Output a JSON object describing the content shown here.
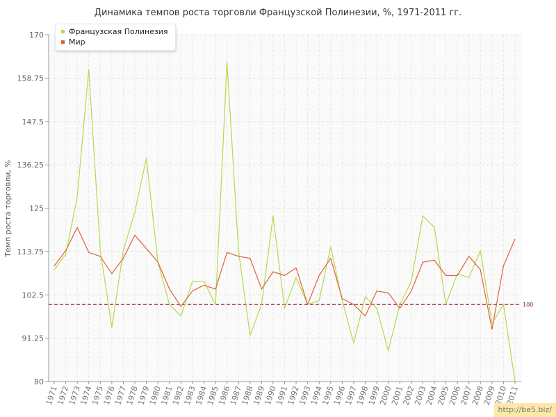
{
  "chart_data": {
    "type": "line",
    "title": "Динамика темпов роста торговли Французской Полинезии, %, 1971-2011 гг.",
    "ylabel": "Темп роста торговли, %",
    "xlabel": "",
    "ylim": [
      80,
      170
    ],
    "yticks": [
      "80",
      "91.25",
      "102.5",
      "113.75",
      "125",
      "136.25",
      "147.5",
      "158.75",
      "170"
    ],
    "reference_line": {
      "value": 100,
      "label": "100",
      "color": "#8b1a1a"
    },
    "grid": true,
    "legend": "top-left",
    "categories": [
      "1971",
      "1972",
      "1973",
      "1974",
      "1975",
      "1976",
      "1977",
      "1978",
      "1979",
      "1980",
      "1981",
      "1982",
      "1983",
      "1984",
      "1985",
      "1986",
      "1987",
      "1988",
      "1989",
      "1990",
      "1991",
      "1992",
      "1993",
      "1994",
      "1995",
      "1996",
      "1997",
      "1998",
      "1999",
      "2000",
      "2001",
      "2002",
      "2003",
      "2004",
      "2005",
      "2006",
      "2007",
      "2008",
      "2009",
      "2010",
      "2011"
    ],
    "series": [
      {
        "name": "Французская Полинезия",
        "color": "#b5d94a",
        "values": [
          109,
          113,
          128,
          161,
          114,
          94,
          114,
          124,
          138,
          111,
          100,
          97,
          106,
          106,
          100,
          163,
          114,
          92,
          100,
          123,
          99,
          107,
          100,
          101,
          115,
          101,
          90,
          102,
          99,
          88,
          100,
          106,
          123,
          120,
          100,
          108,
          107,
          114,
          95,
          100,
          80
        ]
      },
      {
        "name": "Мир",
        "color": "#e0603a",
        "values": [
          110,
          114,
          120,
          113.5,
          112.5,
          108,
          112,
          118,
          114.5,
          111,
          104,
          99.5,
          103.5,
          105,
          104,
          113.5,
          112.5,
          112,
          104,
          108.5,
          107.5,
          109.5,
          100,
          107.5,
          112,
          101.5,
          100,
          97,
          103.5,
          103,
          99,
          103.5,
          111,
          111.5,
          107.5,
          107.5,
          112.5,
          109,
          93.5,
          110,
          117
        ]
      }
    ]
  },
  "legend": {
    "items": [
      {
        "label": "Французская Полинезия",
        "color": "#b5d94a"
      },
      {
        "label": "Мир",
        "color": "#e0603a"
      }
    ]
  },
  "watermark": "http://be5.biz/"
}
